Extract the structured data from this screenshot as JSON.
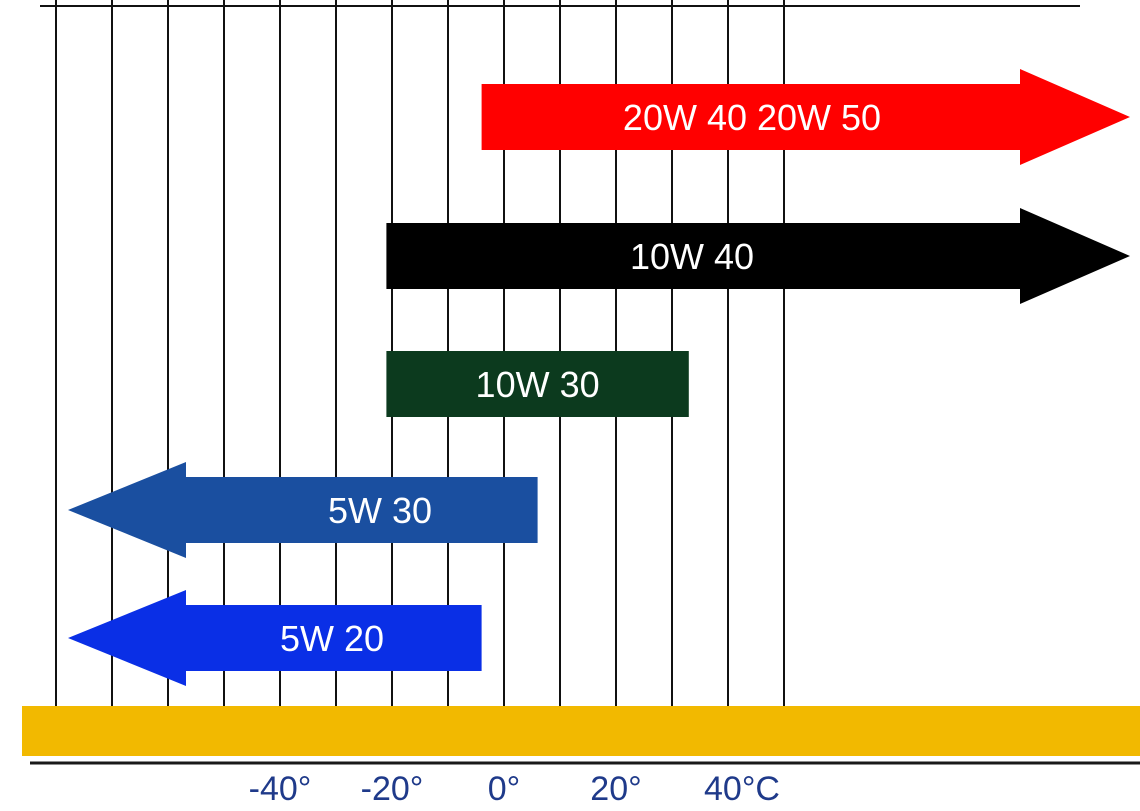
{
  "chart_data": {
    "type": "range-bar",
    "title": "",
    "xlabel": "",
    "ylabel": "",
    "x_unit": "°C",
    "xlim": [
      -50,
      50
    ],
    "grid": true,
    "x_ticks": [
      -40,
      -20,
      0,
      20,
      40
    ],
    "tick_labels": [
      "-40°",
      "-20°",
      "0°",
      "20°",
      "40°C"
    ],
    "axis_color": "#f2b900",
    "series": [
      {
        "label": "20W 40   20W 50",
        "start": -4,
        "end": 50,
        "arrow": "right",
        "color": "#ff0000"
      },
      {
        "label": "10W 40",
        "start": -21,
        "end": 50,
        "arrow": "right",
        "color": "#000000"
      },
      {
        "label": "10W 30",
        "start": -21,
        "end": 33,
        "arrow": "none",
        "color": "#0c3a1e"
      },
      {
        "label": "5W 30",
        "start": -50,
        "end": 6,
        "arrow": "left",
        "color": "#1a4fa0"
      },
      {
        "label": "5W 20",
        "start": -50,
        "end": -4,
        "arrow": "left",
        "color": "#0a2fe6"
      }
    ]
  }
}
